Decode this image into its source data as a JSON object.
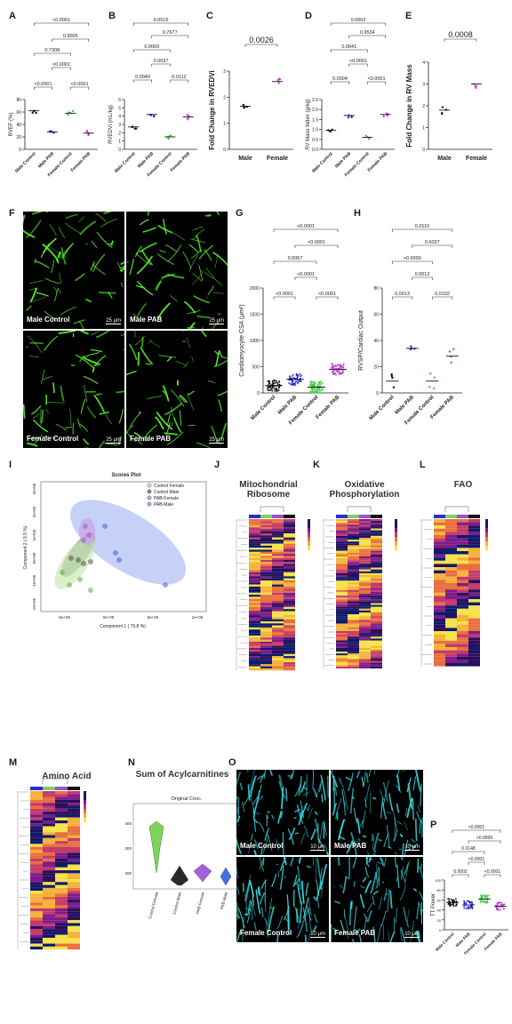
{
  "panels": {
    "A": {
      "letter": "A",
      "ylabel": "RVEF (%)",
      "ticks": [
        "0",
        "20",
        "40",
        "60",
        "80"
      ],
      "categories": [
        "Male Control",
        "Male PAB",
        "Female Control",
        "Female PAB"
      ],
      "pvals": [
        "<0.0001",
        "0.9005",
        "0.7308",
        "<0.0001",
        "<0.0001",
        "<0.0001"
      ]
    },
    "B": {
      "letter": "B",
      "ylabel": "RVEDVi (mL/kg)",
      "ticks": [
        "0",
        "1",
        "2",
        "3",
        "4",
        "5",
        "6"
      ],
      "categories": [
        "Male Control",
        "Male PAB",
        "Female Control",
        "Female PAB"
      ],
      "pvals": [
        "0.0515",
        "0.7677",
        "0.0069",
        "0.0037",
        "0.0049",
        "0.0112"
      ]
    },
    "C": {
      "letter": "C",
      "ylabel": "Fold Change in RVEDVi",
      "ticks": [
        "0",
        "1",
        "2",
        "3"
      ],
      "categories": [
        "Male",
        "Female"
      ],
      "pvals": [
        "0.0026"
      ]
    },
    "D": {
      "letter": "D",
      "ylabel": "RV Mass Index (g/kg)",
      "ticks": [
        "0.0",
        "0.5",
        "1.0",
        "1.5",
        "2.0",
        "2.5"
      ],
      "categories": [
        "Male Control",
        "Male PAB",
        "Female Control",
        "Female PAB"
      ],
      "pvals": [
        "0.0002",
        "0.9534",
        "0.0641",
        "<0.0001",
        "0.0004",
        "<0.0001"
      ]
    },
    "E": {
      "letter": "E",
      "ylabel": "Fold Change in RV Mass",
      "ticks": [
        "0",
        "1",
        "2",
        "3",
        "4"
      ],
      "categories": [
        "Male",
        "Female"
      ],
      "pvals": [
        "0.0008"
      ]
    },
    "F": {
      "letter": "F",
      "labels": [
        "Male Control",
        "Male PAB",
        "Female Control",
        "Female PAB"
      ],
      "scale": "25 μm"
    },
    "G": {
      "letter": "G",
      "ylabel": "Cardiomyocyte CSA (μm²)",
      "ticks": [
        "0",
        "500",
        "1000",
        "1500",
        "2000"
      ],
      "categories": [
        "Male Control",
        "Male PAB",
        "Female Control",
        "Female PAB"
      ],
      "pvals": [
        "<0.0001",
        "<0.0001",
        "0.0067",
        "<0.0001",
        "<0.0001",
        "<0.0001"
      ]
    },
    "H": {
      "letter": "H",
      "ylabel": "RVSP/Cardiac Output",
      "ticks": [
        "0",
        "20",
        "40",
        "60",
        "80"
      ],
      "categories": [
        "Male Control",
        "Male PAB",
        "Female Control",
        "Female PAB"
      ],
      "pvals": [
        "0.0110",
        "0.6037",
        ">0.9999",
        "0.0012",
        "0.0013",
        "0.0102"
      ]
    },
    "I": {
      "letter": "I",
      "title": "Scores Plot",
      "xlabel": "Component 1 ( 79.8 %)",
      "ylabel": "Component 2 ( 5.5 %)",
      "xticks": [
        "-5e+05",
        "0e+00",
        "5e+05",
        "1e+06"
      ],
      "yticks": [
        "3e+05",
        "2e+05",
        "1e+05",
        "0e+00",
        "-1e+05",
        "-2e+05"
      ],
      "legend": [
        "Control Female",
        "Control Male",
        "PAB-Female",
        "PAB-Male"
      ]
    },
    "J": {
      "letter": "J",
      "title": "Mitochondrial Ribosome"
    },
    "K": {
      "letter": "K",
      "title": "Oxidative Phosphorylation"
    },
    "L": {
      "letter": "L",
      "title": "FAO"
    },
    "M": {
      "letter": "M",
      "title": "Amino Acid"
    },
    "N": {
      "letter": "N",
      "title": "Sum of Acylcarnitines",
      "subtitle": "Original Conc.",
      "categories": [
        "Control-Female",
        "Control-Male",
        "PAB-Female",
        "PAB-Male"
      ]
    },
    "O": {
      "letter": "O",
      "labels": [
        "Male Control",
        "Male PAB",
        "Female Control",
        "Female PAB"
      ],
      "scale": "10 μm"
    },
    "P": {
      "letter": "P",
      "ylabel": "TT Power",
      "ticks": [
        "0",
        "20",
        "40",
        "60",
        "80",
        "100"
      ],
      "categories": [
        "Male Control",
        "Male PAB",
        "Female Control",
        "Female PAB"
      ],
      "pvals": [
        "<0.0001",
        ">0.9999",
        "0.0148",
        "<0.0001",
        "0.0002",
        "<0.0001"
      ]
    }
  },
  "colors": {
    "black": "#111111",
    "blue": "#2b2bd6",
    "green": "#3ec93e",
    "magenta": "#c23fd1",
    "micro_green": "#5cf52c",
    "micro_cyan": "#36d7de"
  },
  "chart_data": [
    {
      "type": "scatter",
      "panel": "A",
      "categories": [
        "Male Control",
        "Male PAB",
        "Female Control",
        "Female PAB"
      ],
      "ylim": [
        0,
        80
      ],
      "series": [
        {
          "values": [
            62,
            28,
            58,
            26
          ]
        }
      ]
    },
    {
      "type": "scatter",
      "panel": "B",
      "categories": [
        "Male Control",
        "Male PAB",
        "Female Control",
        "Female PAB"
      ],
      "ylim": [
        0,
        6
      ],
      "series": [
        {
          "values": [
            2.7,
            4.2,
            1.5,
            3.9
          ]
        }
      ]
    },
    {
      "type": "scatter",
      "panel": "C",
      "categories": [
        "Male",
        "Female"
      ],
      "ylim": [
        0,
        3
      ],
      "series": [
        {
          "values": [
            1.65,
            2.6
          ]
        }
      ]
    },
    {
      "type": "scatter",
      "panel": "D",
      "categories": [
        "Male Control",
        "Male PAB",
        "Female Control",
        "Female PAB"
      ],
      "ylim": [
        0,
        2.5
      ],
      "series": [
        {
          "values": [
            0.95,
            1.7,
            0.6,
            1.75
          ]
        }
      ]
    },
    {
      "type": "scatter",
      "panel": "E",
      "categories": [
        "Male",
        "Female"
      ],
      "ylim": [
        0,
        4
      ],
      "series": [
        {
          "values": [
            1.8,
            3.0
          ]
        }
      ]
    },
    {
      "type": "scatter",
      "panel": "G",
      "categories": [
        "Male Control",
        "Male PAB",
        "Female Control",
        "Female PAB"
      ],
      "ylim": [
        0,
        2000
      ],
      "series": [
        {
          "values": [
            140,
            260,
            110,
            450
          ]
        }
      ]
    },
    {
      "type": "scatter",
      "panel": "H",
      "categories": [
        "Male Control",
        "Male PAB",
        "Female Control",
        "Female PAB"
      ],
      "ylim": [
        0,
        80
      ],
      "series": [
        {
          "values": [
            9,
            34,
            9,
            28
          ]
        }
      ]
    },
    {
      "type": "scatter",
      "panel": "P",
      "categories": [
        "Male Control",
        "Male PAB",
        "Female Control",
        "Female PAB"
      ],
      "ylim": [
        0,
        100
      ],
      "series": [
        {
          "values": [
            55,
            50,
            62,
            47
          ]
        }
      ]
    }
  ]
}
